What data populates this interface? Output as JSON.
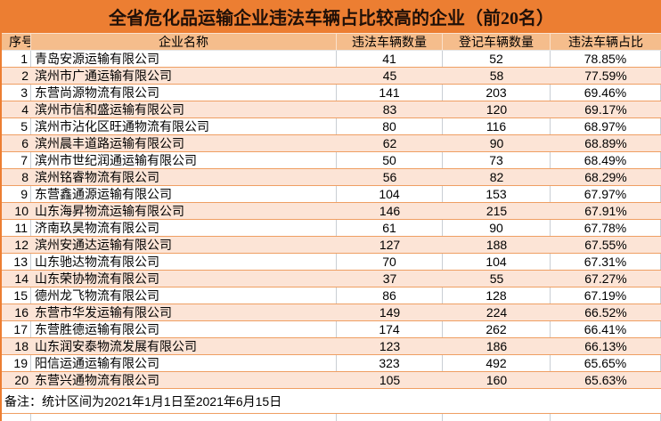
{
  "title": "全省危化品运输企业违法车辆占比较高的企业（前20名）",
  "note": "备注：统计区间为2021年1月1日至2021年6月15日",
  "colors": {
    "title_bar_bg": "#EC7E32",
    "title_text": "#201008",
    "header_bg": "#F5BD8C",
    "row_alt_bg": "#FCE4D6",
    "row_line": "#EF9F63",
    "column_divider": "#C9CED4"
  },
  "table": {
    "headers": [
      "序号",
      "企业名称",
      "违法车辆数量",
      "登记车辆数量",
      "违法车辆占比"
    ],
    "rows": [
      {
        "no": "1",
        "name": "青岛安源运输有限公司",
        "violations": "41",
        "registered": "52",
        "ratio": "78.85%"
      },
      {
        "no": "2",
        "name": "滨州市广通运输有限公司",
        "violations": "45",
        "registered": "58",
        "ratio": "77.59%"
      },
      {
        "no": "3",
        "name": "东营尚源物流有限公司",
        "violations": "141",
        "registered": "203",
        "ratio": "69.46%"
      },
      {
        "no": "4",
        "name": "滨州市信和盛运输有限公司",
        "violations": "83",
        "registered": "120",
        "ratio": "69.17%"
      },
      {
        "no": "5",
        "name": "滨州市沾化区旺通物流有限公司",
        "violations": "80",
        "registered": "116",
        "ratio": "68.97%"
      },
      {
        "no": "6",
        "name": "滨州晨丰道路运输有限公司",
        "violations": "62",
        "registered": "90",
        "ratio": "68.89%"
      },
      {
        "no": "7",
        "name": "滨州市世纪润通运输有限公司",
        "violations": "50",
        "registered": "73",
        "ratio": "68.49%"
      },
      {
        "no": "8",
        "name": "滨州铭睿物流有限公司",
        "violations": "56",
        "registered": "82",
        "ratio": "68.29%"
      },
      {
        "no": "9",
        "name": "东营鑫通源运输有限公司",
        "violations": "104",
        "registered": "153",
        "ratio": "67.97%"
      },
      {
        "no": "10",
        "name": "山东海昇物流运输有限公司",
        "violations": "146",
        "registered": "215",
        "ratio": "67.91%"
      },
      {
        "no": "11",
        "name": "济南玖昊物流有限公司",
        "violations": "61",
        "registered": "90",
        "ratio": "67.78%"
      },
      {
        "no": "12",
        "name": "滨州安通达运输有限公司",
        "violations": "127",
        "registered": "188",
        "ratio": "67.55%"
      },
      {
        "no": "13",
        "name": "山东驰达物流有限公司",
        "violations": "70",
        "registered": "104",
        "ratio": "67.31%"
      },
      {
        "no": "14",
        "name": "山东荣协物流有限公司",
        "violations": "37",
        "registered": "55",
        "ratio": "67.27%"
      },
      {
        "no": "15",
        "name": "德州龙飞物流有限公司",
        "violations": "86",
        "registered": "128",
        "ratio": "67.19%"
      },
      {
        "no": "16",
        "name": "东营市华发运输有限公司",
        "violations": "149",
        "registered": "224",
        "ratio": "66.52%"
      },
      {
        "no": "17",
        "name": "东营胜德运输有限公司",
        "violations": "174",
        "registered": "262",
        "ratio": "66.41%"
      },
      {
        "no": "18",
        "name": "山东润安泰物流发展有限公司",
        "violations": "123",
        "registered": "186",
        "ratio": "66.13%"
      },
      {
        "no": "19",
        "name": "阳信运通运输有限公司",
        "violations": "323",
        "registered": "492",
        "ratio": "65.65%"
      },
      {
        "no": "20",
        "name": "东营兴通物流有限公司",
        "violations": "105",
        "registered": "160",
        "ratio": "65.63%"
      }
    ]
  }
}
